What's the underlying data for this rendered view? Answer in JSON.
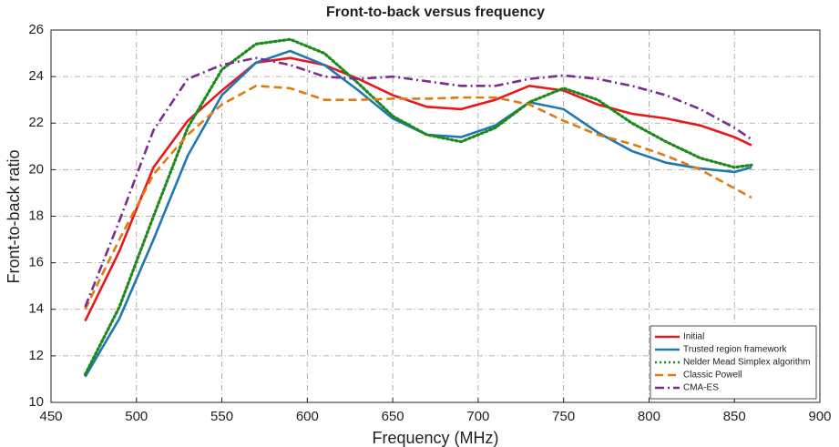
{
  "chart_data": {
    "type": "line",
    "title": "Front-to-back versus frequency",
    "x_label": "Frequency (MHz)",
    "y_label": "Front-to-back ratio",
    "x": [
      470,
      490,
      510,
      530,
      550,
      570,
      590,
      610,
      630,
      650,
      670,
      690,
      710,
      730,
      750,
      770,
      790,
      810,
      830,
      850,
      860
    ],
    "series": [
      {
        "name": "Initial",
        "color": "#e8191c",
        "dash": "solid",
        "values": [
          13.5,
          16.5,
          20.1,
          22.1,
          23.4,
          24.6,
          24.8,
          24.5,
          23.9,
          23.2,
          22.7,
          22.6,
          23.0,
          23.6,
          23.4,
          22.8,
          22.4,
          22.2,
          21.9,
          21.4,
          21.05
        ]
      },
      {
        "name": "Trusted region framework",
        "color": "#1f77b4",
        "dash": "solid",
        "values": [
          11.1,
          13.6,
          17.0,
          20.6,
          23.2,
          24.6,
          25.1,
          24.5,
          23.4,
          22.2,
          21.5,
          21.4,
          21.9,
          22.9,
          22.6,
          21.6,
          20.8,
          20.3,
          20.05,
          19.9,
          20.1
        ]
      },
      {
        "name": "Nelder Mead Simplex algorithm",
        "color": "#1e8a1e",
        "dash": "dot",
        "values": [
          11.2,
          14.1,
          18.0,
          21.8,
          24.3,
          25.4,
          25.6,
          25.0,
          23.7,
          22.3,
          21.5,
          21.2,
          21.8,
          22.9,
          23.5,
          23.0,
          22.0,
          21.2,
          20.5,
          20.1,
          20.2
        ]
      },
      {
        "name": "Classic Powell",
        "color": "#e07b10",
        "dash": "dash",
        "values": [
          14.0,
          17.0,
          19.8,
          21.5,
          22.8,
          23.6,
          23.5,
          23.0,
          23.0,
          23.05,
          23.05,
          23.1,
          23.1,
          22.8,
          22.1,
          21.5,
          21.1,
          20.6,
          20.0,
          19.2,
          18.8
        ]
      },
      {
        "name": "CMA-ES",
        "color": "#7b2d8e",
        "dash": "dashdot",
        "values": [
          14.1,
          17.8,
          21.7,
          23.9,
          24.5,
          24.8,
          24.5,
          24.0,
          23.9,
          24.0,
          23.8,
          23.6,
          23.6,
          23.9,
          24.05,
          23.9,
          23.6,
          23.2,
          22.6,
          21.8,
          21.3
        ]
      }
    ],
    "xlim": [
      450,
      900
    ],
    "xticks": [
      450,
      500,
      550,
      600,
      650,
      700,
      750,
      800,
      850,
      900
    ],
    "ylim": [
      10,
      26
    ],
    "yticks": [
      10,
      12,
      14,
      16,
      18,
      20,
      22,
      24,
      26
    ],
    "grid": true,
    "legend": "lower right"
  }
}
